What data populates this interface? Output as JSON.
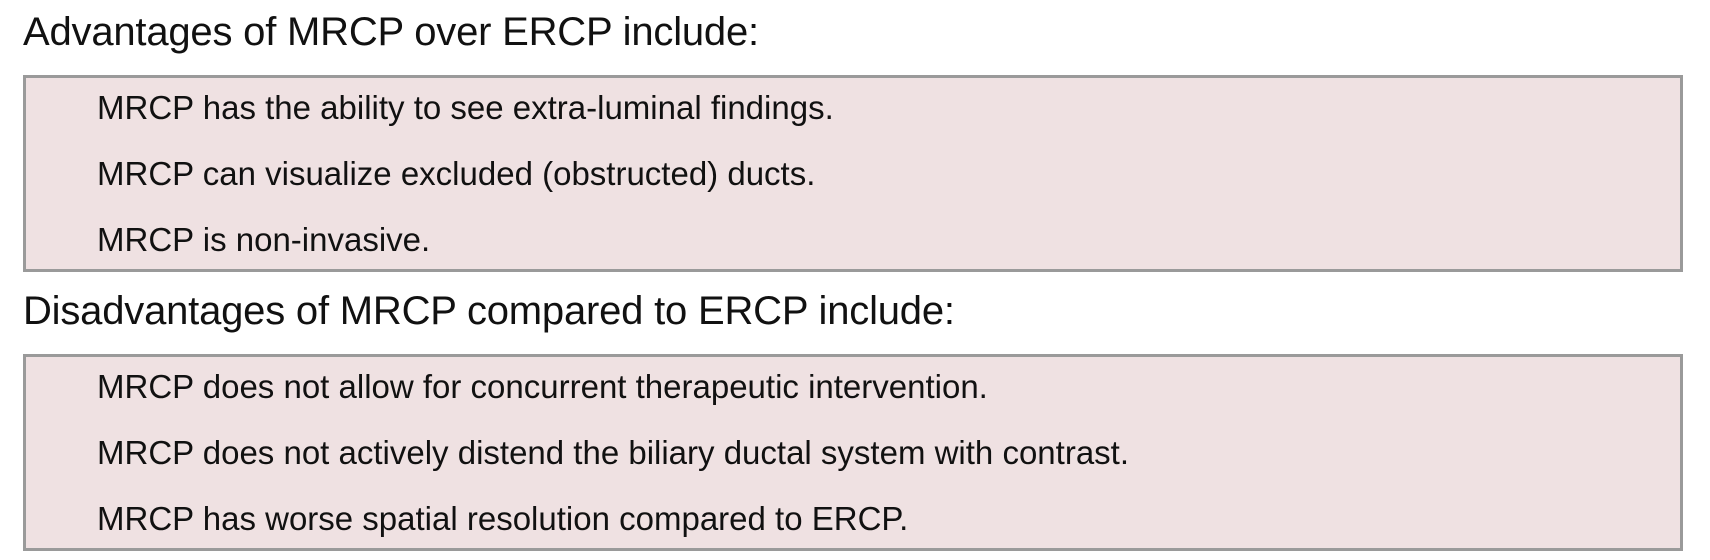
{
  "advantages": {
    "heading": "Advantages of MRCP over ERCP include:",
    "items": [
      "MRCP has the ability to see extra-luminal findings.",
      "MRCP can visualize excluded (obstructed) ducts.",
      "MRCP is non-invasive."
    ]
  },
  "disadvantages": {
    "heading": "Disadvantages of MRCP compared to ERCP include:",
    "items": [
      "MRCP does not allow for concurrent therapeutic intervention.",
      "MRCP does not actively distend the biliary ductal system with contrast.",
      "MRCP has worse spatial resolution compared to ERCP."
    ]
  },
  "colors": {
    "box_background": "#efe1e2",
    "box_border": "#9a9a9a",
    "text": "#111111"
  }
}
